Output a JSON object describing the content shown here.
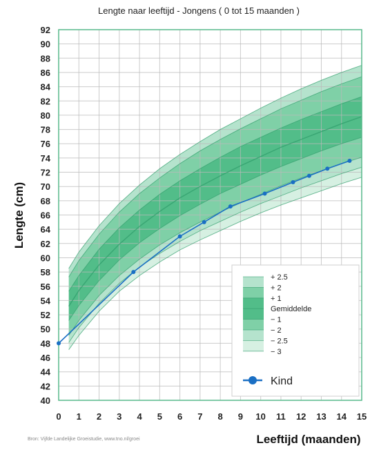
{
  "chart_data": {
    "type": "line",
    "title": "Lengte naar leeftijd - Jongens ( 0 tot 15 maanden )",
    "xlabel": "Leeftijd (maanden)",
    "ylabel": "Lengte (cm)",
    "xlim": [
      0,
      15
    ],
    "ylim": [
      40,
      92
    ],
    "x_ticks": [
      "0",
      "1",
      "2",
      "3",
      "4",
      "5",
      "6",
      "7",
      "8",
      "9",
      "10",
      "11",
      "12",
      "13",
      "14",
      "15"
    ],
    "y_ticks": [
      "40",
      "42",
      "44",
      "46",
      "48",
      "50",
      "52",
      "54",
      "56",
      "58",
      "60",
      "62",
      "64",
      "66",
      "68",
      "70",
      "72",
      "74",
      "76",
      "78",
      "80",
      "82",
      "84",
      "86",
      "88",
      "90",
      "92"
    ],
    "grid": true,
    "band_ages": [
      0.5,
      1,
      2,
      3,
      4,
      5,
      6,
      7,
      8,
      9,
      10,
      11,
      12,
      13,
      14,
      15
    ],
    "reference_curves": [
      {
        "name": "+ 2.5",
        "values": [
          58.5,
          60.8,
          64.5,
          67.6,
          70.2,
          72.5,
          74.5,
          76.3,
          78.0,
          79.5,
          81.0,
          82.4,
          83.7,
          84.9,
          86.0,
          87.0
        ]
      },
      {
        "name": "+ 2",
        "values": [
          57.3,
          59.6,
          63.3,
          66.4,
          69.0,
          71.2,
          73.2,
          75.0,
          76.6,
          78.1,
          79.5,
          80.9,
          82.1,
          83.3,
          84.4,
          85.4
        ]
      },
      {
        "name": "+ 1",
        "values": [
          55.3,
          57.5,
          61.2,
          64.2,
          66.7,
          68.9,
          70.8,
          72.5,
          74.1,
          75.6,
          76.9,
          78.2,
          79.4,
          80.5,
          81.6,
          82.6
        ]
      },
      {
        "name": "Gemiddelde",
        "values": [
          53.2,
          55.4,
          59.0,
          61.9,
          64.4,
          66.5,
          68.4,
          70.0,
          71.5,
          72.9,
          74.2,
          75.5,
          76.6,
          77.7,
          78.8,
          79.8
        ]
      },
      {
        "name": "− 1",
        "values": [
          51.2,
          53.3,
          56.8,
          59.7,
          62.1,
          64.1,
          65.9,
          67.5,
          69.0,
          70.3,
          71.6,
          72.8,
          73.9,
          75.0,
          76.0,
          76.9
        ]
      },
      {
        "name": "− 2",
        "values": [
          49.1,
          51.2,
          54.7,
          57.5,
          59.8,
          61.8,
          63.5,
          65.0,
          66.4,
          67.7,
          68.9,
          70.1,
          71.2,
          72.2,
          73.2,
          74.1
        ]
      },
      {
        "name": "− 2.5",
        "values": [
          48.1,
          50.2,
          53.6,
          56.4,
          58.7,
          60.6,
          62.3,
          63.8,
          65.1,
          66.4,
          67.6,
          68.7,
          69.8,
          70.8,
          71.8,
          72.7
        ]
      },
      {
        "name": "− 3",
        "values": [
          47.1,
          49.1,
          52.5,
          55.3,
          57.5,
          59.4,
          61.1,
          62.5,
          63.8,
          65.1,
          66.3,
          67.4,
          68.4,
          69.4,
          70.4,
          71.3
        ]
      }
    ],
    "series": [
      {
        "name": "Kind",
        "x": [
          0,
          3.7,
          6.0,
          7.2,
          8.5,
          10.2,
          11.6,
          12.4,
          13.3,
          14.4
        ],
        "values": [
          48.0,
          58.0,
          63.0,
          65.0,
          67.2,
          69.0,
          70.6,
          71.5,
          72.5,
          73.6
        ]
      }
    ],
    "legend": {
      "placement": "bottom-right",
      "items": [
        "+ 2.5",
        "+ 2",
        "+ 1",
        "Gemiddelde",
        "− 1",
        "− 2",
        "− 2.5",
        "− 3"
      ],
      "series_label": "Kind"
    },
    "source_note": "Bron: Vijfde Landelijke Groeistudie, www.tno.nl/groei",
    "colors": {
      "band_outer": "#b5e3cd",
      "band_mid": "#7fd0a7",
      "band_inner": "#52bd89",
      "band_light": "#d6f0e2",
      "curve": "#2a9a66",
      "grid": "#b9b9b9",
      "frame": "#56b98a",
      "kind": "#1a6fc4"
    }
  }
}
